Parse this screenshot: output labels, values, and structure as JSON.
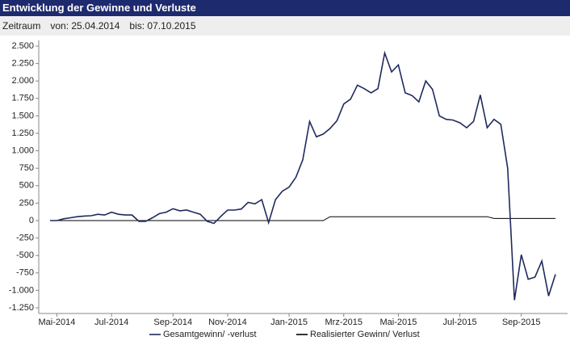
{
  "header": {
    "title": "Entwicklung der Gewinne und Verluste",
    "period_label": "Zeitraum",
    "from": "von: 25.04.2014",
    "to": "bis: 07.10.2015"
  },
  "chart_data": {
    "type": "line",
    "categories": [
      null,
      "Mai-2014",
      null,
      null,
      null,
      null,
      null,
      null,
      null,
      "Jul-2014",
      null,
      null,
      null,
      null,
      null,
      null,
      null,
      null,
      "Sep-2014",
      null,
      null,
      null,
      null,
      null,
      null,
      null,
      "Nov-2014",
      null,
      null,
      null,
      null,
      null,
      null,
      null,
      null,
      "Jan-2015",
      null,
      null,
      null,
      null,
      null,
      null,
      null,
      "Mrz-2015",
      null,
      null,
      null,
      null,
      null,
      null,
      null,
      "Mai-2015",
      null,
      null,
      null,
      null,
      null,
      null,
      null,
      null,
      "Jul-2015",
      null,
      null,
      null,
      null,
      null,
      null,
      null,
      null,
      "Sep-2015",
      null,
      null,
      null,
      null,
      null
    ],
    "series": [
      {
        "name": "Gesamtgewinn/ -verlust",
        "color": "#1f2a5e",
        "values": [
          0,
          0,
          25,
          40,
          55,
          65,
          70,
          90,
          80,
          120,
          90,
          80,
          80,
          -10,
          -10,
          40,
          100,
          120,
          170,
          140,
          150,
          120,
          90,
          -10,
          -40,
          60,
          150,
          150,
          165,
          260,
          240,
          300,
          -30,
          300,
          420,
          480,
          620,
          870,
          1420,
          1200,
          1240,
          1320,
          1430,
          1670,
          1740,
          1940,
          1890,
          1830,
          1890,
          2400,
          2130,
          2230,
          1830,
          1790,
          1700,
          2000,
          1880,
          1500,
          1450,
          1440,
          1400,
          1330,
          1420,
          1800,
          1330,
          1450,
          1380,
          750,
          -1140,
          -490,
          -840,
          -810,
          -580,
          -1080,
          -770
        ]
      },
      {
        "name": "Realisierter Gewinn/ Verlust",
        "color": "#000000",
        "values": [
          0,
          0,
          0,
          0,
          0,
          0,
          0,
          0,
          0,
          0,
          0,
          0,
          0,
          0,
          0,
          0,
          0,
          0,
          0,
          0,
          0,
          0,
          0,
          0,
          0,
          0,
          0,
          0,
          0,
          0,
          0,
          0,
          0,
          0,
          0,
          0,
          0,
          0,
          0,
          0,
          0,
          55,
          55,
          55,
          55,
          55,
          55,
          55,
          55,
          55,
          55,
          55,
          55,
          55,
          55,
          55,
          55,
          55,
          55,
          55,
          55,
          55,
          55,
          55,
          55,
          30,
          30,
          30,
          30,
          30,
          30,
          30,
          30,
          30,
          30
        ]
      }
    ],
    "ylim": [
      -1250,
      2500
    ],
    "yticks": [
      {
        "value": 2500,
        "label": "2.500"
      },
      {
        "value": 2250,
        "label": "2.250"
      },
      {
        "value": 2000,
        "label": "2.000"
      },
      {
        "value": 1750,
        "label": "1.750"
      },
      {
        "value": 1500,
        "label": "1.500"
      },
      {
        "value": 1250,
        "label": "1.250"
      },
      {
        "value": 1000,
        "label": "1.000"
      },
      750,
      500,
      250,
      0,
      -250,
      -500,
      -750,
      {
        "value": -1000,
        "label": "-1.000"
      },
      {
        "value": -1250,
        "label": "-1.250"
      }
    ],
    "grid": false,
    "legend": "bottom"
  }
}
